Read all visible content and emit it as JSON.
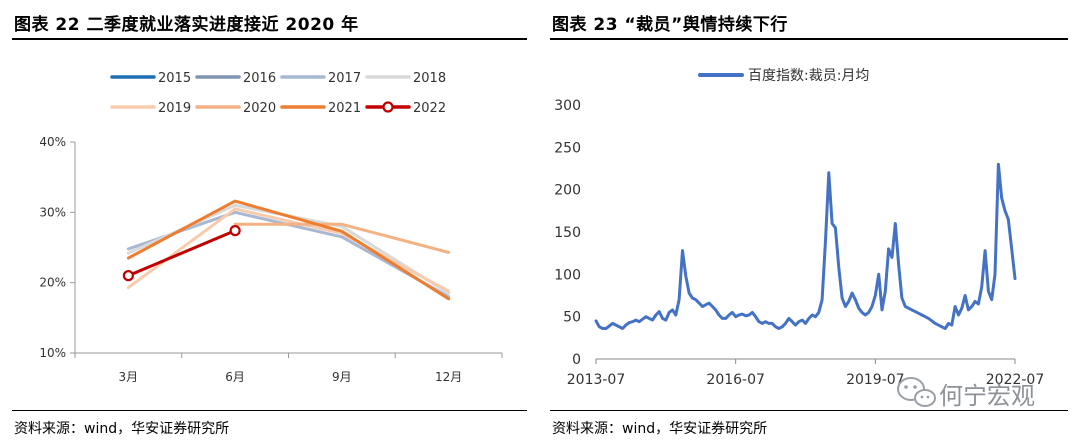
{
  "left": {
    "figure_title": "图表 22  二季度就业落实进度接近 2020 年",
    "source": "资料来源：wind，华安证券研究所"
  },
  "right": {
    "figure_title": "图表 23  “裁员”舆情持续下行",
    "source": "资料来源：wind，华安证券研究所"
  },
  "watermark": "何宁宏观",
  "chart_data": [
    {
      "type": "line",
      "title": "",
      "xlabel": "",
      "ylabel": "",
      "categories": [
        "3月",
        "6月",
        "9月",
        "12月"
      ],
      "y_tick_labels": [
        "10%",
        "20%",
        "30%",
        "40%"
      ],
      "ylim": [
        10,
        40
      ],
      "grid": false,
      "legend_position": "top",
      "series": [
        {
          "name": "2015",
          "color": "#1f6fb5",
          "values": [
            null,
            null,
            null,
            null
          ]
        },
        {
          "name": "2016",
          "color": "#8094b4",
          "values": [
            null,
            null,
            null,
            null
          ]
        },
        {
          "name": "2017",
          "color": "#a9b7d0",
          "values": [
            24.8,
            30.0,
            26.5,
            18.0
          ]
        },
        {
          "name": "2018",
          "color": "#d9d9d9",
          "values": [
            24.2,
            31.0,
            28.0,
            18.5
          ]
        },
        {
          "name": "2019",
          "color": "#f8cbad",
          "values": [
            19.3,
            30.5,
            27.0,
            18.8
          ]
        },
        {
          "name": "2020",
          "color": "#f4b183",
          "values": [
            null,
            28.3,
            28.3,
            24.3
          ]
        },
        {
          "name": "2021",
          "color": "#ed7d31",
          "values": [
            23.5,
            31.6,
            27.3,
            17.7
          ]
        },
        {
          "name": "2022",
          "color": "#c00000",
          "marker": "circle",
          "values": [
            21.0,
            27.4,
            null,
            null
          ]
        }
      ]
    },
    {
      "type": "line",
      "title": "",
      "xlabel": "",
      "ylabel": "",
      "x_tick_labels": [
        "2013-07",
        "2016-07",
        "2019-07",
        "2022-07"
      ],
      "y_tick_labels": [
        "0",
        "50",
        "100",
        "150",
        "200",
        "250",
        "300"
      ],
      "ylim": [
        0,
        300
      ],
      "grid": false,
      "legend_position": "top",
      "series": [
        {
          "name": "百度指数:裁员:月均",
          "color": "#4472c4",
          "values": [
            45,
            38,
            36,
            36,
            39,
            42,
            40,
            38,
            36,
            40,
            43,
            44,
            46,
            44,
            47,
            50,
            48,
            46,
            52,
            56,
            48,
            46,
            55,
            58,
            52,
            70,
            128,
            98,
            78,
            72,
            70,
            66,
            62,
            64,
            66,
            62,
            58,
            52,
            48,
            48,
            52,
            55,
            50,
            52,
            53,
            51,
            52,
            55,
            50,
            44,
            42,
            44,
            42,
            42,
            38,
            36,
            38,
            42,
            48,
            44,
            40,
            44,
            46,
            42,
            48,
            52,
            50,
            55,
            70,
            140,
            220,
            160,
            155,
            108,
            72,
            62,
            68,
            78,
            70,
            60,
            55,
            52,
            55,
            62,
            75,
            100,
            58,
            80,
            130,
            120,
            160,
            112,
            72,
            62,
            60,
            58,
            56,
            54,
            52,
            50,
            48,
            45,
            42,
            40,
            38,
            36,
            42,
            40,
            62,
            52,
            60,
            75,
            58,
            62,
            68,
            65,
            85,
            128,
            80,
            70,
            100,
            230,
            190,
            175,
            165,
            130,
            95
          ]
        }
      ]
    }
  ]
}
